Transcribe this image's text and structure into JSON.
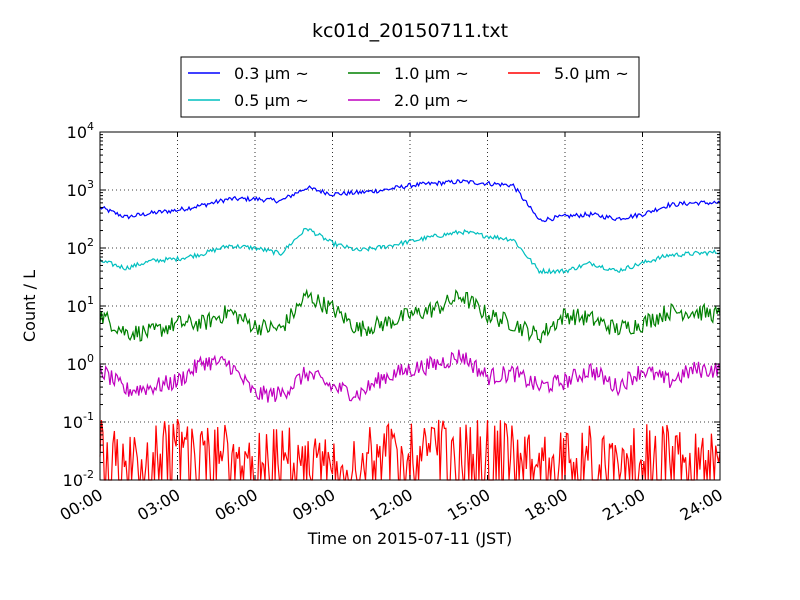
{
  "chart_data": {
    "type": "line",
    "title": "kc01d_20150711.txt",
    "xlabel": "Time on 2015-07-11 (JST)",
    "ylabel": "Count / L",
    "y_scale": "log",
    "xlim": [
      "2015-07-11 00:00",
      "2015-07-12 00:00"
    ],
    "ylim": [
      0.01,
      10000
    ],
    "grid": true,
    "legend_position": "top-center",
    "x_ticks": [
      "00:00",
      "03:00",
      "06:00",
      "09:00",
      "12:00",
      "15:00",
      "18:00",
      "21:00",
      "24:00"
    ],
    "y_ticks": [
      {
        "value": 0.01,
        "base": "10",
        "exp": "-2"
      },
      {
        "value": 0.1,
        "base": "10",
        "exp": "-1"
      },
      {
        "value": 1,
        "base": "10",
        "exp": "0"
      },
      {
        "value": 10,
        "base": "10",
        "exp": "1"
      },
      {
        "value": 100,
        "base": "10",
        "exp": "2"
      },
      {
        "value": 1000,
        "base": "10",
        "exp": "3"
      },
      {
        "value": 10000,
        "base": "10",
        "exp": "4"
      }
    ],
    "x": [
      "00:00",
      "01:00",
      "02:00",
      "03:00",
      "04:00",
      "05:00",
      "06:00",
      "07:00",
      "08:00",
      "09:00",
      "10:00",
      "11:00",
      "12:00",
      "13:00",
      "14:00",
      "15:00",
      "16:00",
      "17:00",
      "18:00",
      "19:00",
      "20:00",
      "21:00",
      "22:00",
      "23:00",
      "24:00"
    ],
    "series": [
      {
        "name": "0.3 μm ~",
        "color": "#0000ff",
        "values": [
          500,
          340,
          400,
          450,
          550,
          700,
          700,
          650,
          1100,
          850,
          900,
          1000,
          1200,
          1300,
          1400,
          1300,
          1200,
          300,
          350,
          380,
          320,
          380,
          550,
          600,
          600
        ]
      },
      {
        "name": "0.5 μm ~",
        "color": "#00bfbf",
        "values": [
          60,
          45,
          60,
          65,
          80,
          110,
          100,
          80,
          220,
          120,
          90,
          105,
          130,
          160,
          190,
          160,
          140,
          40,
          40,
          55,
          40,
          55,
          75,
          80,
          85
        ]
      },
      {
        "name": "1.0 μm ~",
        "color": "#008000",
        "values": [
          7,
          3.5,
          3.5,
          5,
          5,
          8,
          4.5,
          4,
          15,
          9,
          4,
          5,
          7,
          9,
          15,
          7,
          5,
          3,
          7,
          6,
          4,
          5,
          8,
          8,
          7
        ]
      },
      {
        "name": "2.0 μm ~",
        "color": "#bf00bf",
        "values": [
          0.8,
          0.35,
          0.4,
          0.5,
          1.1,
          1.0,
          0.3,
          0.3,
          0.7,
          0.4,
          0.3,
          0.6,
          0.8,
          1.0,
          1.4,
          0.6,
          0.7,
          0.4,
          0.5,
          0.8,
          0.4,
          0.8,
          0.5,
          0.8,
          0.8
        ]
      },
      {
        "name": "5.0 μm ~",
        "color": "#ff0000",
        "values": [
          0.04,
          0.02,
          0.03,
          0.04,
          0.03,
          0.03,
          0.02,
          0.03,
          0.02,
          0.02,
          0.02,
          0.04,
          0.03,
          0.04,
          0.03,
          0.04,
          0.03,
          0.02,
          0.03,
          0.03,
          0.02,
          0.03,
          0.03,
          0.02,
          0.03
        ]
      }
    ]
  }
}
